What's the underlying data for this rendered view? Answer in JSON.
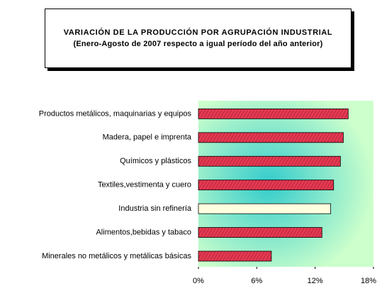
{
  "chart_data": {
    "type": "hbar",
    "title": "VARIACIÓN DE LA PRODUCCIÓN POR AGRUPACIÓN INDUSTRIAL",
    "subtitle": "(Enero-Agosto de 2007 respecto a igual período del año anterior)",
    "categories": [
      "Productos metálicos, maquinarias y equipos",
      "Madera, papel e imprenta",
      "Químicos y plásticos",
      "Textiles,vestimenta y cuero",
      "Industria sin refinería",
      "Alimentos,bebidas y tabaco",
      "Minerales no metálicos y metálicas básicas"
    ],
    "values": [
      15.4,
      14.9,
      14.6,
      13.9,
      13.6,
      12.7,
      7.5
    ],
    "colors": [
      "#e8384f",
      "#e8384f",
      "#e8384f",
      "#e8384f",
      "#ffffe0",
      "#e8384f",
      "#e8384f"
    ],
    "xlim": [
      0,
      18
    ],
    "xticks": [
      {
        "value": 0,
        "label": "0%"
      },
      {
        "value": 6,
        "label": "6%"
      },
      {
        "value": 12,
        "label": "12%"
      },
      {
        "value": 18,
        "label": "18%"
      }
    ]
  }
}
